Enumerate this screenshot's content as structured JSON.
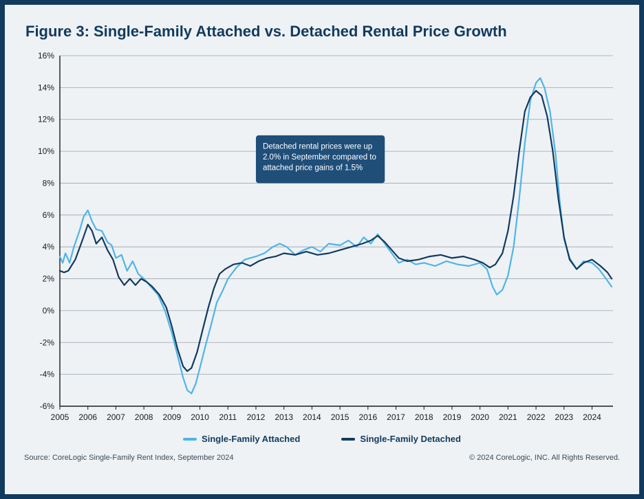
{
  "title": "Figure 3: Single-Family Attached vs. Detached Rental Price Growth",
  "annotation_text": "Detached rental prices were up 2.0% in September compared to attached price gains of 1.5%",
  "legend": {
    "attached": "Single-Family Attached",
    "detached": "Single-Family Detached"
  },
  "source_text": "Source: CoreLogic Single-Family Rent Index, September 2024",
  "copyright_text": "© 2024 CoreLogic, INC. All Rights Reserved.",
  "chart": {
    "type": "line",
    "background_color": "#eef2f5",
    "axis_color": "#1a1a1a",
    "grid_color": "#9aa4ad",
    "tick_label_color": "#1a1a1a",
    "tick_fontsize": 12,
    "line_width": 2.2,
    "x": {
      "min": 2005.0,
      "max": 2024.75,
      "ticks": [
        2005,
        2006,
        2007,
        2008,
        2009,
        2010,
        2011,
        2012,
        2013,
        2014,
        2015,
        2016,
        2017,
        2018,
        2019,
        2020,
        2021,
        2022,
        2023,
        2024
      ]
    },
    "y": {
      "min": -6,
      "max": 16,
      "ticks": [
        -6,
        -4,
        -2,
        0,
        2,
        4,
        6,
        8,
        10,
        12,
        14,
        16
      ],
      "suffix": "%"
    },
    "annotation_box": {
      "bg": "#1f4e79",
      "text_color": "#ffffff",
      "fontsize": 11.5,
      "x": 2012.0,
      "y_top": 11.0,
      "width_years": 4.6,
      "height_pct": 3.0
    },
    "series": [
      {
        "name": "Single-Family Attached",
        "color": "#4fb4e8",
        "points": [
          [
            2005.0,
            3.4
          ],
          [
            2005.1,
            3.0
          ],
          [
            2005.2,
            3.6
          ],
          [
            2005.35,
            3.0
          ],
          [
            2005.5,
            4.0
          ],
          [
            2005.7,
            5.0
          ],
          [
            2005.85,
            5.9
          ],
          [
            2006.0,
            6.3
          ],
          [
            2006.15,
            5.6
          ],
          [
            2006.3,
            5.1
          ],
          [
            2006.5,
            5.0
          ],
          [
            2006.7,
            4.3
          ],
          [
            2006.85,
            4.1
          ],
          [
            2007.0,
            3.3
          ],
          [
            2007.2,
            3.5
          ],
          [
            2007.4,
            2.5
          ],
          [
            2007.6,
            3.1
          ],
          [
            2007.8,
            2.3
          ],
          [
            2008.0,
            2.0
          ],
          [
            2008.25,
            1.5
          ],
          [
            2008.5,
            1.0
          ],
          [
            2008.75,
            0.0
          ],
          [
            2009.0,
            -1.4
          ],
          [
            2009.2,
            -2.8
          ],
          [
            2009.4,
            -4.2
          ],
          [
            2009.55,
            -5.0
          ],
          [
            2009.7,
            -5.2
          ],
          [
            2009.85,
            -4.6
          ],
          [
            2010.0,
            -3.6
          ],
          [
            2010.2,
            -2.2
          ],
          [
            2010.4,
            -0.9
          ],
          [
            2010.6,
            0.5
          ],
          [
            2010.8,
            1.2
          ],
          [
            2011.0,
            2.0
          ],
          [
            2011.3,
            2.7
          ],
          [
            2011.6,
            3.2
          ],
          [
            2012.0,
            3.4
          ],
          [
            2012.3,
            3.6
          ],
          [
            2012.6,
            4.0
          ],
          [
            2012.85,
            4.2
          ],
          [
            2013.1,
            4.0
          ],
          [
            2013.4,
            3.5
          ],
          [
            2013.7,
            3.8
          ],
          [
            2014.0,
            4.0
          ],
          [
            2014.3,
            3.7
          ],
          [
            2014.6,
            4.2
          ],
          [
            2015.0,
            4.1
          ],
          [
            2015.3,
            4.4
          ],
          [
            2015.6,
            4.0
          ],
          [
            2015.85,
            4.6
          ],
          [
            2016.1,
            4.2
          ],
          [
            2016.35,
            4.8
          ],
          [
            2016.6,
            4.2
          ],
          [
            2016.85,
            3.6
          ],
          [
            2017.1,
            3.0
          ],
          [
            2017.4,
            3.2
          ],
          [
            2017.7,
            2.9
          ],
          [
            2018.0,
            3.0
          ],
          [
            2018.4,
            2.8
          ],
          [
            2018.8,
            3.1
          ],
          [
            2019.2,
            2.9
          ],
          [
            2019.6,
            2.8
          ],
          [
            2020.0,
            3.0
          ],
          [
            2020.25,
            2.6
          ],
          [
            2020.45,
            1.5
          ],
          [
            2020.6,
            1.0
          ],
          [
            2020.8,
            1.3
          ],
          [
            2021.0,
            2.2
          ],
          [
            2021.2,
            4.0
          ],
          [
            2021.4,
            7.0
          ],
          [
            2021.6,
            10.5
          ],
          [
            2021.8,
            13.2
          ],
          [
            2022.0,
            14.3
          ],
          [
            2022.15,
            14.6
          ],
          [
            2022.3,
            14.0
          ],
          [
            2022.5,
            12.5
          ],
          [
            2022.7,
            9.8
          ],
          [
            2022.85,
            6.8
          ],
          [
            2023.0,
            4.5
          ],
          [
            2023.2,
            3.3
          ],
          [
            2023.45,
            2.6
          ],
          [
            2023.7,
            3.1
          ],
          [
            2024.0,
            3.0
          ],
          [
            2024.25,
            2.6
          ],
          [
            2024.5,
            2.0
          ],
          [
            2024.7,
            1.5
          ]
        ]
      },
      {
        "name": "Single-Family Detached",
        "color": "#123a5e",
        "points": [
          [
            2005.0,
            2.5
          ],
          [
            2005.15,
            2.4
          ],
          [
            2005.3,
            2.5
          ],
          [
            2005.55,
            3.2
          ],
          [
            2005.8,
            4.4
          ],
          [
            2006.0,
            5.4
          ],
          [
            2006.15,
            5.0
          ],
          [
            2006.3,
            4.2
          ],
          [
            2006.5,
            4.6
          ],
          [
            2006.7,
            3.8
          ],
          [
            2006.9,
            3.2
          ],
          [
            2007.1,
            2.1
          ],
          [
            2007.3,
            1.6
          ],
          [
            2007.5,
            2.0
          ],
          [
            2007.7,
            1.6
          ],
          [
            2007.9,
            2.0
          ],
          [
            2008.1,
            1.8
          ],
          [
            2008.3,
            1.5
          ],
          [
            2008.55,
            1.0
          ],
          [
            2008.8,
            0.2
          ],
          [
            2009.0,
            -1.0
          ],
          [
            2009.2,
            -2.4
          ],
          [
            2009.4,
            -3.5
          ],
          [
            2009.55,
            -3.8
          ],
          [
            2009.7,
            -3.6
          ],
          [
            2009.9,
            -2.6
          ],
          [
            2010.1,
            -1.2
          ],
          [
            2010.3,
            0.2
          ],
          [
            2010.5,
            1.4
          ],
          [
            2010.7,
            2.3
          ],
          [
            2010.9,
            2.6
          ],
          [
            2011.2,
            2.9
          ],
          [
            2011.5,
            3.0
          ],
          [
            2011.8,
            2.8
          ],
          [
            2012.1,
            3.1
          ],
          [
            2012.4,
            3.3
          ],
          [
            2012.7,
            3.4
          ],
          [
            2013.0,
            3.6
          ],
          [
            2013.4,
            3.5
          ],
          [
            2013.8,
            3.7
          ],
          [
            2014.2,
            3.5
          ],
          [
            2014.6,
            3.6
          ],
          [
            2015.0,
            3.8
          ],
          [
            2015.4,
            4.0
          ],
          [
            2015.8,
            4.2
          ],
          [
            2016.1,
            4.4
          ],
          [
            2016.35,
            4.7
          ],
          [
            2016.6,
            4.3
          ],
          [
            2016.85,
            3.8
          ],
          [
            2017.1,
            3.3
          ],
          [
            2017.4,
            3.1
          ],
          [
            2017.8,
            3.2
          ],
          [
            2018.2,
            3.4
          ],
          [
            2018.6,
            3.5
          ],
          [
            2019.0,
            3.3
          ],
          [
            2019.4,
            3.4
          ],
          [
            2019.8,
            3.2
          ],
          [
            2020.1,
            3.0
          ],
          [
            2020.35,
            2.7
          ],
          [
            2020.55,
            2.9
          ],
          [
            2020.8,
            3.6
          ],
          [
            2021.0,
            5.0
          ],
          [
            2021.2,
            7.2
          ],
          [
            2021.4,
            10.0
          ],
          [
            2021.6,
            12.5
          ],
          [
            2021.8,
            13.4
          ],
          [
            2022.0,
            13.8
          ],
          [
            2022.2,
            13.5
          ],
          [
            2022.4,
            12.2
          ],
          [
            2022.6,
            10.0
          ],
          [
            2022.8,
            7.0
          ],
          [
            2023.0,
            4.6
          ],
          [
            2023.2,
            3.2
          ],
          [
            2023.45,
            2.6
          ],
          [
            2023.7,
            3.0
          ],
          [
            2024.0,
            3.2
          ],
          [
            2024.3,
            2.8
          ],
          [
            2024.55,
            2.4
          ],
          [
            2024.7,
            2.0
          ]
        ]
      }
    ]
  }
}
